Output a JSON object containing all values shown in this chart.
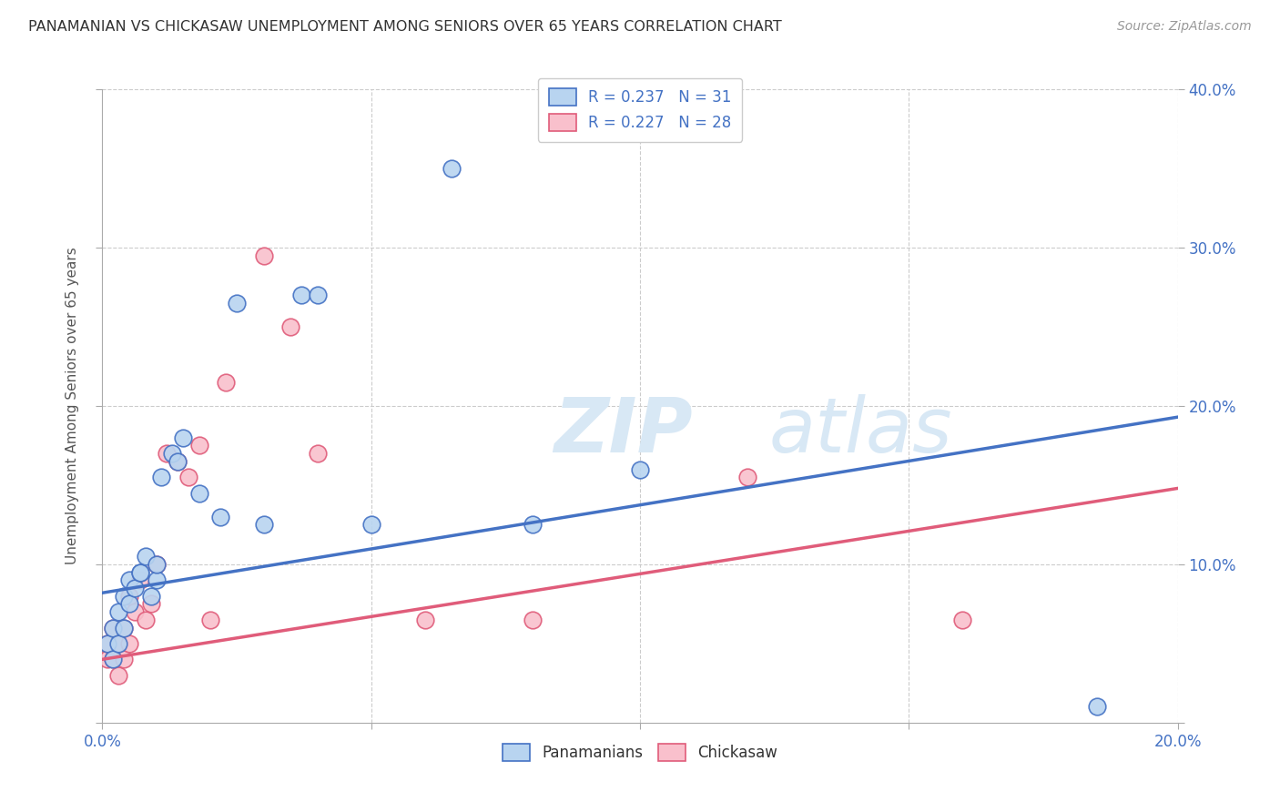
{
  "title": "PANAMANIAN VS CHICKASAW UNEMPLOYMENT AMONG SENIORS OVER 65 YEARS CORRELATION CHART",
  "source": "Source: ZipAtlas.com",
  "ylabel": "Unemployment Among Seniors over 65 years",
  "xlim": [
    0.0,
    0.2
  ],
  "ylim": [
    0.0,
    0.4
  ],
  "background_color": "#ffffff",
  "grid_color": "#cccccc",
  "panamanian_color": "#b8d4f0",
  "chickasaw_color": "#f9c0cc",
  "panamanian_line_color": "#4472c4",
  "chickasaw_line_color": "#e05c7a",
  "R_panamanian": 0.237,
  "N_panamanian": 31,
  "R_chickasaw": 0.227,
  "N_chickasaw": 28,
  "watermark_zip": "ZIP",
  "watermark_atlas": "atlas",
  "pan_x": [
    0.001,
    0.002,
    0.002,
    0.003,
    0.003,
    0.004,
    0.004,
    0.005,
    0.005,
    0.006,
    0.007,
    0.007,
    0.008,
    0.009,
    0.01,
    0.01,
    0.011,
    0.013,
    0.014,
    0.015,
    0.018,
    0.022,
    0.025,
    0.03,
    0.037,
    0.04,
    0.05,
    0.065,
    0.08,
    0.1,
    0.185
  ],
  "pan_y": [
    0.05,
    0.04,
    0.06,
    0.05,
    0.07,
    0.06,
    0.08,
    0.075,
    0.09,
    0.085,
    0.095,
    0.095,
    0.105,
    0.08,
    0.09,
    0.1,
    0.155,
    0.17,
    0.165,
    0.18,
    0.145,
    0.13,
    0.265,
    0.125,
    0.27,
    0.27,
    0.125,
    0.35,
    0.125,
    0.16,
    0.01
  ],
  "chick_x": [
    0.001,
    0.001,
    0.002,
    0.002,
    0.003,
    0.003,
    0.004,
    0.004,
    0.005,
    0.005,
    0.006,
    0.007,
    0.008,
    0.009,
    0.01,
    0.012,
    0.014,
    0.016,
    0.018,
    0.02,
    0.023,
    0.03,
    0.035,
    0.04,
    0.06,
    0.08,
    0.12,
    0.16
  ],
  "chick_y": [
    0.04,
    0.05,
    0.04,
    0.06,
    0.03,
    0.05,
    0.04,
    0.06,
    0.05,
    0.08,
    0.07,
    0.09,
    0.065,
    0.075,
    0.1,
    0.17,
    0.165,
    0.155,
    0.175,
    0.065,
    0.215,
    0.295,
    0.25,
    0.17,
    0.065,
    0.065,
    0.155,
    0.065
  ],
  "pan_line_x0": 0.0,
  "pan_line_y0": 0.082,
  "pan_line_x1": 0.2,
  "pan_line_y1": 0.193,
  "chick_line_x0": 0.0,
  "chick_line_y0": 0.04,
  "chick_line_x1": 0.2,
  "chick_line_y1": 0.148
}
